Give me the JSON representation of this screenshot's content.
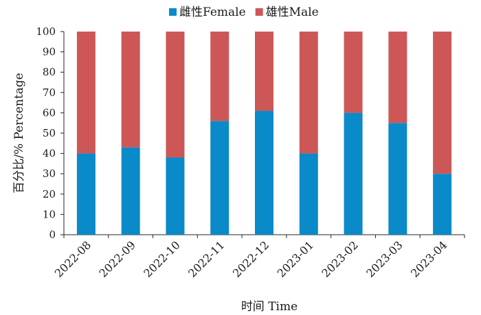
{
  "chart_data": {
    "type": "bar",
    "stacked": true,
    "categories": [
      "2022-08",
      "2022-09",
      "2022-10",
      "2022-11",
      "2022-12",
      "2023-01",
      "2023-02",
      "2023-03",
      "2023-04"
    ],
    "series": [
      {
        "name": "雌性Female",
        "values": [
          40,
          43,
          38,
          56,
          61,
          40,
          60,
          55,
          30
        ],
        "color": "#0a8ac9"
      },
      {
        "name": "雄性Male",
        "values": [
          60,
          57,
          62,
          44,
          39,
          60,
          40,
          45,
          70
        ],
        "color": "#cd5757"
      }
    ],
    "xlabel": "时间 Time",
    "ylabel": "百分比/% Percentage",
    "ylim": [
      0,
      100
    ],
    "yticks": [
      "0",
      "10",
      "20",
      "30",
      "40",
      "50",
      "60",
      "70",
      "80",
      "90",
      "100"
    ],
    "grid": false,
    "legend_position": "top-center"
  }
}
